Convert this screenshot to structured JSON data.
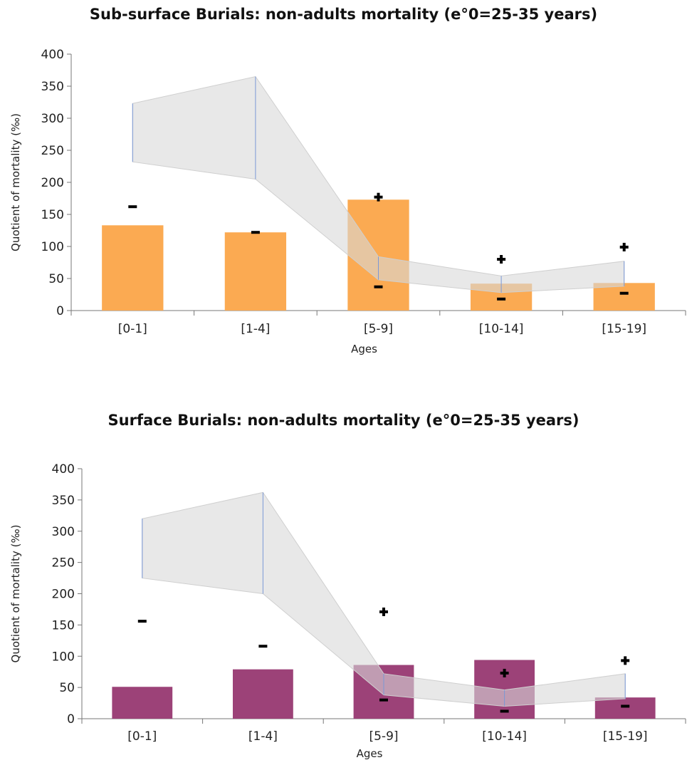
{
  "chart_data": [
    {
      "type": "bar",
      "title": "Sub-surface Burials: non-adults mortality (e°0=25-35 years)",
      "xlabel": "Ages",
      "ylabel": "Quotient of mortality (‰)",
      "ylim": [
        0,
        400
      ],
      "yticks": [
        0,
        50,
        100,
        150,
        200,
        250,
        300,
        350,
        400
      ],
      "categories": [
        "[0-1]",
        "[1-4]",
        "[5-9]",
        "[10-14]",
        "[15-19]"
      ],
      "bar_color": "#fbaa52",
      "values": [
        133,
        122,
        173,
        42,
        43
      ],
      "reference_band": {
        "lower": [
          232,
          205,
          48,
          28,
          38
        ],
        "upper": [
          323,
          365,
          84,
          54,
          77
        ]
      },
      "markers": [
        {
          "category": "[0-1]",
          "symbol": "−",
          "value": 162
        },
        {
          "category": "[1-4]",
          "symbol": "−",
          "value": 122
        },
        {
          "category": "[5-9]",
          "symbol": "+",
          "value": 177
        },
        {
          "category": "[5-9]",
          "symbol": "−",
          "value": 37
        },
        {
          "category": "[10-14]",
          "symbol": "+",
          "value": 80
        },
        {
          "category": "[10-14]",
          "symbol": "−",
          "value": 18
        },
        {
          "category": "[15-19]",
          "symbol": "+",
          "value": 99
        },
        {
          "category": "[15-19]",
          "symbol": "−",
          "value": 27
        }
      ],
      "grid": false
    },
    {
      "type": "bar",
      "title": "Surface Burials: non-adults mortality (e°0=25-35 years)",
      "xlabel": "Ages",
      "ylabel": "Quotient of mortality (‰)",
      "ylim": [
        0,
        400
      ],
      "yticks": [
        0,
        50,
        100,
        150,
        200,
        250,
        300,
        350,
        400
      ],
      "categories": [
        "[0-1]",
        "[1-4]",
        "[5-9]",
        "[10-14]",
        "[15-19]"
      ],
      "bar_color": "#9c4278",
      "values": [
        51,
        79,
        86,
        94,
        34
      ],
      "reference_band": {
        "lower": [
          225,
          200,
          38,
          20,
          32
        ],
        "upper": [
          320,
          362,
          72,
          46,
          72
        ]
      },
      "markers": [
        {
          "category": "[0-1]",
          "symbol": "−",
          "value": 156
        },
        {
          "category": "[1-4]",
          "symbol": "−",
          "value": 116
        },
        {
          "category": "[5-9]",
          "symbol": "+",
          "value": 171
        },
        {
          "category": "[5-9]",
          "symbol": "−",
          "value": 30
        },
        {
          "category": "[10-14]",
          "symbol": "+",
          "value": 73
        },
        {
          "category": "[10-14]",
          "symbol": "−",
          "value": 12
        },
        {
          "category": "[15-19]",
          "symbol": "+",
          "value": 93
        },
        {
          "category": "[15-19]",
          "symbol": "−",
          "value": 20
        }
      ],
      "grid": false
    }
  ]
}
